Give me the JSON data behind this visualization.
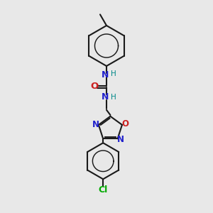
{
  "bg_color": "#e8e8e8",
  "bond_color": "#1a1a1a",
  "N_color": "#2020cc",
  "O_color": "#cc2020",
  "Cl_color": "#00aa00",
  "H_color": "#008888",
  "lw": 1.5,
  "fig_w": 3.0,
  "fig_h": 3.0,
  "dpi": 100,
  "xlim": [
    0,
    10
  ],
  "ylim": [
    0,
    10
  ]
}
